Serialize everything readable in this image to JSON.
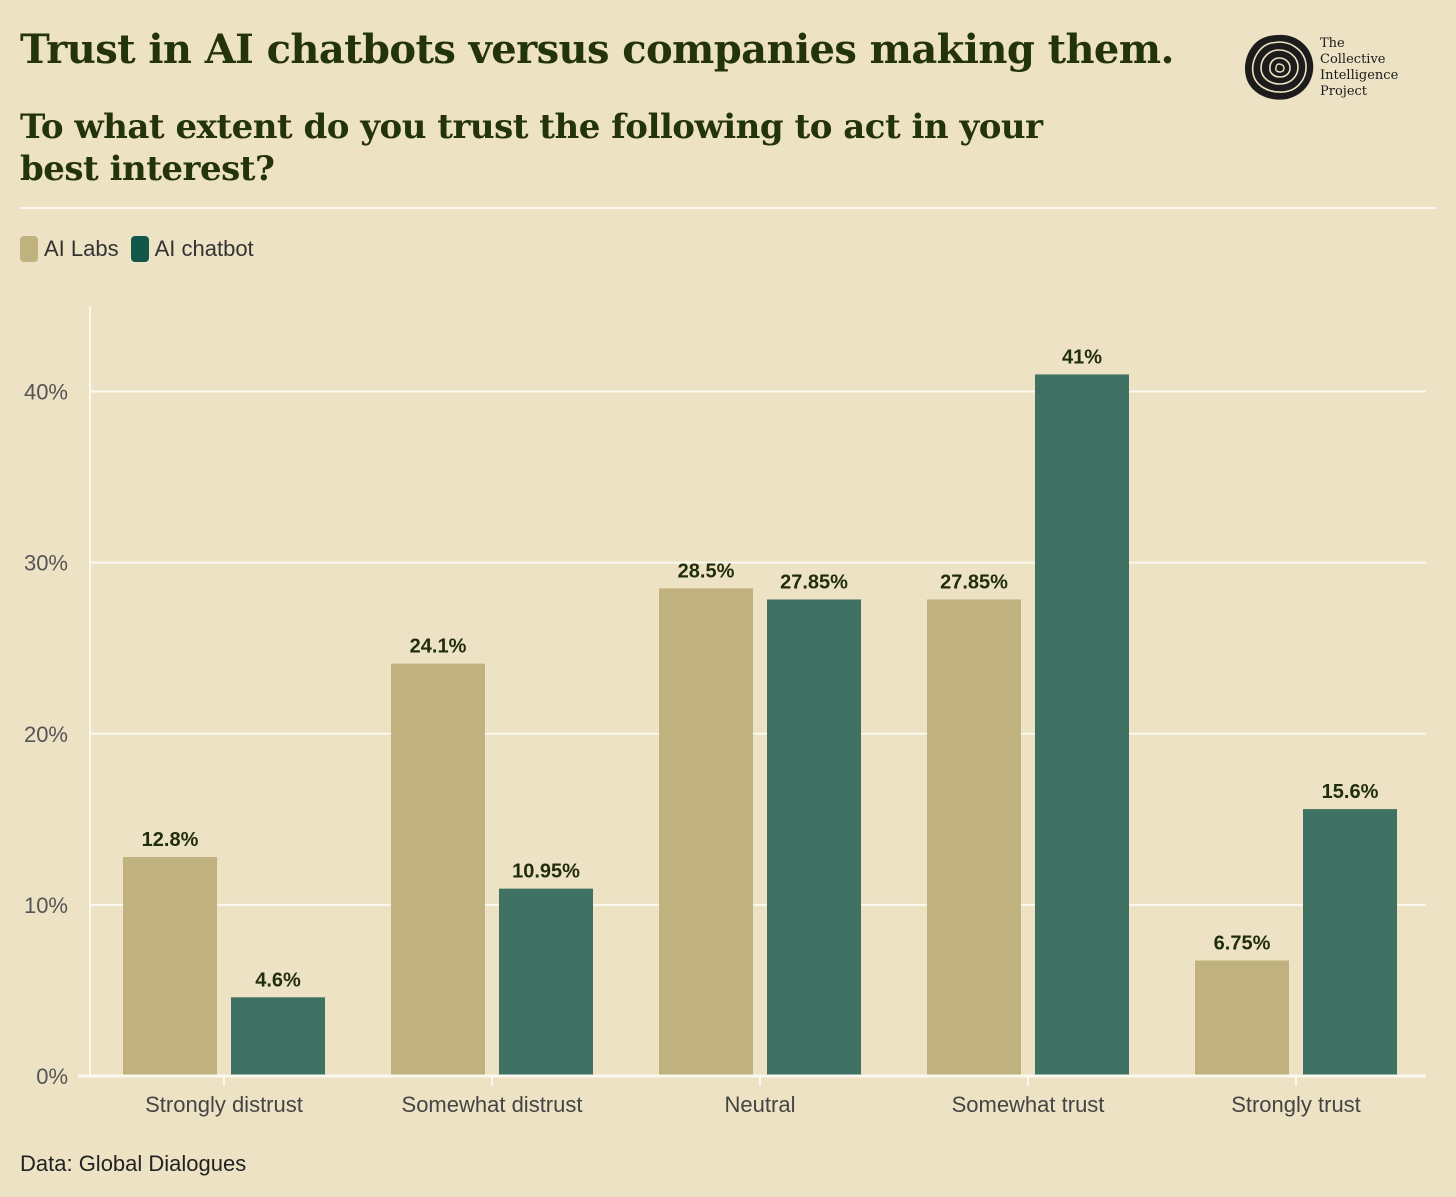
{
  "header": {
    "title": "Trust in AI chatbots versus companies making them.",
    "subtitle": "To what extent do you trust the following to act in your best interest?"
  },
  "logo": {
    "line1": "The",
    "line2": "Collective",
    "line3": "Intelligence",
    "line4": "Project"
  },
  "footer": {
    "source": "Data: Global Dialogues"
  },
  "colors": {
    "background": "#ede2c4",
    "ai_labs": "#bfb27f",
    "ai_chatbot": "#3f7262",
    "ai_chatbot_legend": "#12574a",
    "grid": "#fbf8ef",
    "label": "#1f2d0a"
  },
  "chart_data": {
    "type": "bar",
    "title": "Trust in AI chatbots versus companies making them.",
    "subtitle": "To what extent do you trust the following to act in your best interest?",
    "xlabel": "",
    "ylabel": "",
    "ylim": [
      0,
      45
    ],
    "yticks": [
      0,
      10,
      20,
      30,
      40
    ],
    "ytick_labels": [
      "0%",
      "10%",
      "20%",
      "30%",
      "40%"
    ],
    "categories": [
      "Strongly distrust",
      "Somewhat distrust",
      "Neutral",
      "Somewhat trust",
      "Strongly trust"
    ],
    "series": [
      {
        "name": "AI Labs",
        "values": [
          12.8,
          24.1,
          28.5,
          27.85,
          6.75
        ],
        "labels": [
          "12.8%",
          "24.1%",
          "28.5%",
          "27.85%",
          "6.75%"
        ]
      },
      {
        "name": "AI chatbot",
        "values": [
          4.6,
          10.95,
          27.85,
          41,
          15.6
        ],
        "labels": [
          "4.6%",
          "10.95%",
          "27.85%",
          "41%",
          "15.6%"
        ]
      }
    ],
    "grid": true,
    "legend": "top-left"
  }
}
